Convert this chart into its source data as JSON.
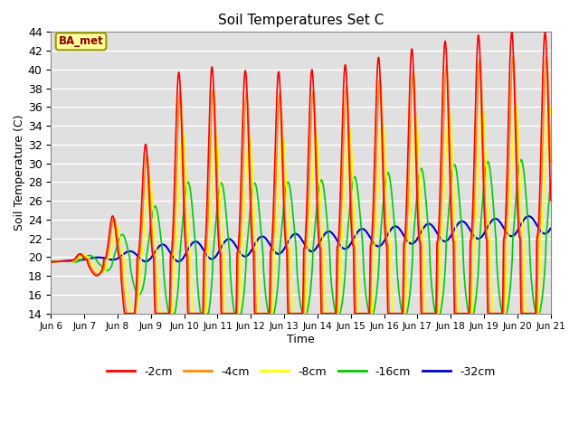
{
  "title": "Soil Temperatures Set C",
  "xlabel": "Time",
  "ylabel": "Soil Temperature (C)",
  "ylim": [
    14,
    44
  ],
  "yticks": [
    14,
    16,
    18,
    20,
    22,
    24,
    26,
    28,
    30,
    32,
    34,
    36,
    38,
    40,
    42,
    44
  ],
  "background_color": "#ffffff",
  "plot_bg_color": "#e0e0e0",
  "grid_color": "#ffffff",
  "annotation_text": "BA_met",
  "annotation_bg": "#ffff99",
  "annotation_border": "#999900",
  "lines": {
    "-2cm": {
      "color": "#ff0000",
      "lw": 1.2
    },
    "-4cm": {
      "color": "#ff8c00",
      "lw": 1.2
    },
    "-8cm": {
      "color": "#ffff00",
      "lw": 1.2
    },
    "-16cm": {
      "color": "#00cc00",
      "lw": 1.2
    },
    "-32cm": {
      "color": "#0000cc",
      "lw": 1.5
    }
  },
  "x_tick_labels": [
    "Jun 6",
    "Jun 7",
    "Jun 8",
    "Jun 9",
    "Jun 10",
    "Jun 11",
    "Jun 12",
    "Jun 13",
    "Jun 14",
    "Jun 15",
    "Jun 16",
    "Jun 17",
    "Jun 18",
    "Jun 19",
    "Jun 20",
    "Jun 21"
  ],
  "n_days": 15,
  "points_per_day": 144
}
